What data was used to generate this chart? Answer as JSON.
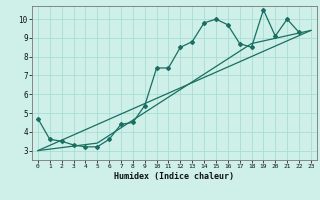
{
  "xlabel": "Humidex (Indice chaleur)",
  "background_color": "#cef0e8",
  "grid_color": "#a8ddd4",
  "line_color": "#1a6e62",
  "xlim": [
    -0.5,
    23.5
  ],
  "ylim": [
    2.5,
    10.7
  ],
  "xticks": [
    0,
    1,
    2,
    3,
    4,
    5,
    6,
    7,
    8,
    9,
    10,
    11,
    12,
    13,
    14,
    15,
    16,
    17,
    18,
    19,
    20,
    21,
    22,
    23
  ],
  "yticks": [
    3,
    4,
    5,
    6,
    7,
    8,
    9,
    10
  ],
  "series1_x": [
    0,
    1,
    2,
    3,
    4,
    5,
    6,
    7,
    8,
    9,
    10,
    11,
    12,
    13,
    14,
    15,
    16,
    17,
    18,
    19,
    20,
    21,
    22
  ],
  "series1_y": [
    4.7,
    3.6,
    3.5,
    3.3,
    3.2,
    3.2,
    3.6,
    4.4,
    4.5,
    5.4,
    7.4,
    7.4,
    8.5,
    8.8,
    9.8,
    10.0,
    9.7,
    8.7,
    8.5,
    10.5,
    9.1,
    10.0,
    9.3
  ],
  "series2_x": [
    0,
    23
  ],
  "series2_y": [
    3.0,
    9.4
  ],
  "series3_x": [
    0,
    5,
    18,
    23
  ],
  "series3_y": [
    3.0,
    3.4,
    8.7,
    9.4
  ],
  "marker": "D",
  "marker_size": 2.0,
  "line_width": 0.9
}
